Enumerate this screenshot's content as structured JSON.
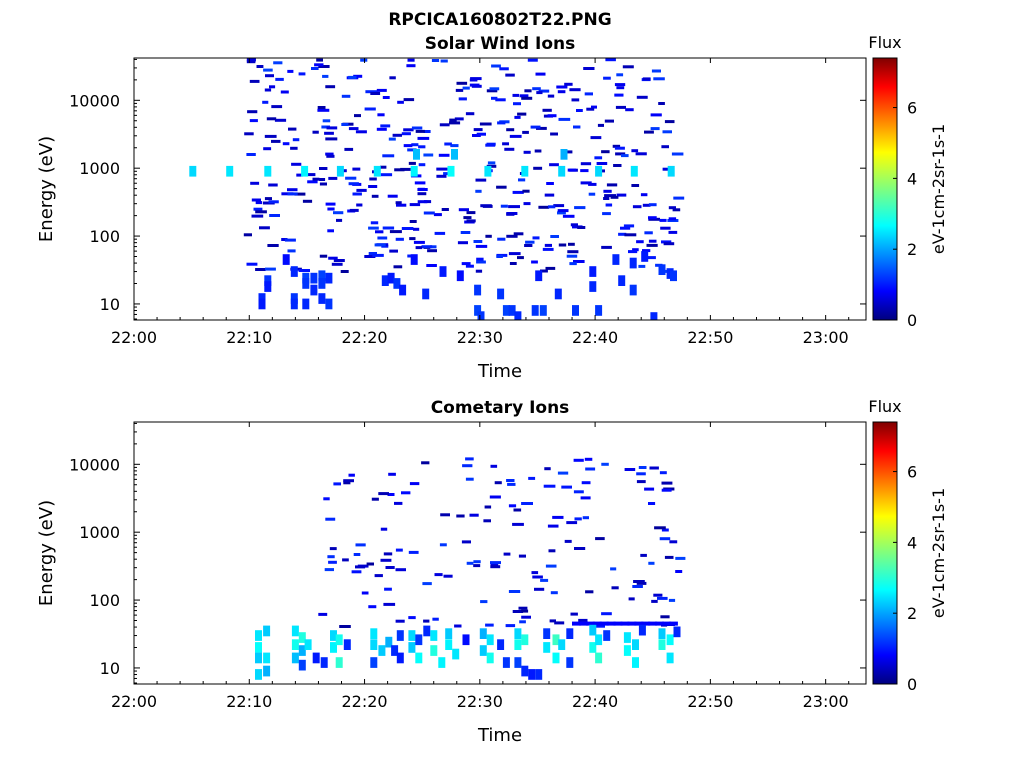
{
  "figure": {
    "title": "RPCICA160802T22.PNG"
  },
  "chart_data": [
    {
      "type": "heatmap",
      "title": "Solar Wind Ions",
      "xlabel": "Time",
      "ylabel": "Energy (eV)",
      "x_ticks": [
        "22:00",
        "22:10",
        "22:20",
        "22:30",
        "22:40",
        "22:50",
        "23:00"
      ],
      "xlim_minutes": [
        0,
        63.5
      ],
      "y_scale": "log",
      "y_ticks": [
        10,
        100,
        1000,
        10000
      ],
      "y_tick_labels": [
        "10",
        "100",
        "1000",
        "10000"
      ],
      "ylim": [
        5.8,
        42000
      ],
      "colorbar": {
        "title": "Flux",
        "label": "eV-1cm-2sr-1s-1",
        "ticks": [
          0,
          2,
          4,
          6
        ],
        "range": [
          0,
          7.4
        ],
        "colormap": "jet"
      },
      "data_window_minutes": [
        4.5,
        47
      ],
      "cells": [
        [
          4.8,
          900,
          2.5
        ],
        [
          8,
          900,
          2.6
        ],
        [
          11.3,
          900,
          2.6
        ],
        [
          14.5,
          900,
          2.7
        ],
        [
          17.6,
          900,
          2.5
        ],
        [
          20.8,
          900,
          2.6
        ],
        [
          24,
          900,
          2.7
        ],
        [
          27.2,
          900,
          2.8
        ],
        [
          30.4,
          900,
          2.6
        ],
        [
          33.6,
          900,
          2.6
        ],
        [
          36.8,
          900,
          2.5
        ],
        [
          40,
          900,
          2.5
        ],
        [
          43.1,
          900,
          2.6
        ],
        [
          46.3,
          900,
          2.5
        ],
        [
          27.5,
          1600,
          2.3
        ],
        [
          37,
          1600,
          2.2
        ],
        [
          24.2,
          1600,
          2.3
        ],
        [
          10.8,
          12,
          1.2
        ],
        [
          10.8,
          10,
          1.1
        ],
        [
          11.3,
          22,
          1.3
        ],
        [
          11.3,
          18,
          1.1
        ],
        [
          12.9,
          45,
          1.0
        ],
        [
          13.6,
          30,
          1.2
        ],
        [
          13.6,
          12,
          1.3
        ],
        [
          13.6,
          10,
          1.2
        ],
        [
          14.6,
          24,
          1.4
        ],
        [
          14.6,
          20,
          1.3
        ],
        [
          14.6,
          10,
          1.2
        ],
        [
          15.3,
          24,
          1.3
        ],
        [
          15.3,
          16,
          1.2
        ],
        [
          16.0,
          26,
          1.4
        ],
        [
          16.0,
          20,
          1.3
        ],
        [
          16.0,
          12,
          1.2
        ],
        [
          16.6,
          24,
          1.2
        ],
        [
          16.6,
          10,
          1.3
        ],
        [
          21.5,
          22,
          1.2
        ],
        [
          22.0,
          24,
          1.1
        ],
        [
          22.5,
          20,
          1.3
        ],
        [
          23.0,
          16,
          1.1
        ],
        [
          24.0,
          45,
          1.0
        ],
        [
          25.0,
          14,
          1.2
        ],
        [
          26.5,
          30,
          1.1
        ],
        [
          28.0,
          26,
          1.0
        ],
        [
          29.5,
          16,
          1.3
        ],
        [
          29.5,
          8,
          1.4
        ],
        [
          29.8,
          6.5,
          1.3
        ],
        [
          31.5,
          14,
          1.3
        ],
        [
          32.0,
          8,
          1.4
        ],
        [
          32.5,
          8,
          1.3
        ],
        [
          33.0,
          6.5,
          1.2
        ],
        [
          34.5,
          8,
          1.3
        ],
        [
          35.2,
          8,
          1.4
        ],
        [
          34.8,
          26,
          1.1
        ],
        [
          36.5,
          14,
          1.2
        ],
        [
          38.0,
          8,
          1.3
        ],
        [
          39.5,
          18,
          1.2
        ],
        [
          39.5,
          30,
          1.1
        ],
        [
          40.0,
          8,
          1.3
        ],
        [
          41.5,
          45,
          1.2
        ],
        [
          42.0,
          22,
          1.2
        ],
        [
          43.0,
          16,
          1.3
        ],
        [
          43.0,
          40,
          1.2
        ],
        [
          44.0,
          50,
          1.1
        ],
        [
          44.8,
          6.3,
          1.2
        ],
        [
          45.5,
          32,
          1.3
        ],
        [
          46.2,
          28,
          1.2
        ],
        [
          46.5,
          26,
          1.3
        ]
      ]
    },
    {
      "type": "heatmap",
      "title": "Cometary Ions",
      "xlabel": "Time",
      "ylabel": "Energy (eV)",
      "x_ticks": [
        "22:00",
        "22:10",
        "22:20",
        "22:30",
        "22:40",
        "22:50",
        "23:00"
      ],
      "xlim_minutes": [
        0,
        63.5
      ],
      "y_scale": "log",
      "y_ticks": [
        10,
        100,
        1000,
        10000
      ],
      "y_tick_labels": [
        "10",
        "100",
        "1000",
        "10000"
      ],
      "ylim": [
        5.8,
        42000
      ],
      "colorbar": {
        "title": "Flux",
        "label": "eV-1cm-2sr-1s-1",
        "ticks": [
          0,
          2,
          4,
          6
        ],
        "range": [
          0,
          7.4
        ],
        "colormap": "jet"
      },
      "data_window_minutes": [
        10,
        47
      ],
      "cells": [
        [
          10.5,
          30,
          2.6
        ],
        [
          10.5,
          20,
          2.8
        ],
        [
          10.5,
          14,
          2.4
        ],
        [
          10.5,
          8,
          2.5
        ],
        [
          11.2,
          14,
          2.6
        ],
        [
          11.2,
          9,
          2.2
        ],
        [
          11.2,
          35,
          2.4
        ],
        [
          13.7,
          35,
          2.6
        ],
        [
          13.7,
          22,
          2.9
        ],
        [
          13.7,
          14,
          2.3
        ],
        [
          14.3,
          28,
          3.0
        ],
        [
          14.3,
          18,
          2.2
        ],
        [
          14.3,
          11,
          1.4
        ],
        [
          14.8,
          22,
          2.6
        ],
        [
          15.5,
          14,
          1.1
        ],
        [
          16.2,
          12,
          1.2
        ],
        [
          17.0,
          30,
          2.5
        ],
        [
          17.0,
          20,
          2.7
        ],
        [
          17.5,
          26,
          2.9
        ],
        [
          17.5,
          12,
          3.1
        ],
        [
          18.2,
          22,
          1.2
        ],
        [
          20.5,
          32,
          2.6
        ],
        [
          20.5,
          22,
          2.5
        ],
        [
          20.5,
          12,
          1.4
        ],
        [
          21.2,
          18,
          2.4
        ],
        [
          21.8,
          24,
          2.2
        ],
        [
          22.3,
          18,
          1.2
        ],
        [
          22.8,
          30,
          1.3
        ],
        [
          22.8,
          14,
          1.1
        ],
        [
          23.8,
          30,
          2.5
        ],
        [
          23.8,
          20,
          2.4
        ],
        [
          24.4,
          26,
          1.3
        ],
        [
          24.4,
          14,
          2.8
        ],
        [
          25.1,
          35,
          1.2
        ],
        [
          25.7,
          30,
          2.6
        ],
        [
          25.7,
          18,
          3.0
        ],
        [
          26.4,
          12,
          2.7
        ],
        [
          27.0,
          32,
          2.4
        ],
        [
          27.0,
          22,
          2.7
        ],
        [
          27.6,
          16,
          2.6
        ],
        [
          28.5,
          26,
          1.0
        ],
        [
          30.0,
          32,
          2.2
        ],
        [
          30.0,
          18,
          2.4
        ],
        [
          30.6,
          26,
          2.6
        ],
        [
          30.6,
          14,
          2.9
        ],
        [
          31.5,
          22,
          1.2
        ],
        [
          32.0,
          12,
          1.3
        ],
        [
          33.0,
          32,
          2.5
        ],
        [
          33.0,
          22,
          2.9
        ],
        [
          33.0,
          12,
          1.4
        ],
        [
          33.6,
          26,
          3.0
        ],
        [
          33.6,
          9,
          1.2
        ],
        [
          34.2,
          8,
          1.1
        ],
        [
          34.8,
          8,
          1.2
        ],
        [
          35.5,
          32,
          1.3
        ],
        [
          35.5,
          20,
          2.6
        ],
        [
          36.3,
          26,
          3.2
        ],
        [
          36.3,
          14,
          2.8
        ],
        [
          36.8,
          22,
          2.5
        ],
        [
          37.5,
          32,
          1.2
        ],
        [
          37.5,
          12,
          1.3
        ],
        [
          39.5,
          36,
          2.4
        ],
        [
          39.5,
          20,
          2.9
        ],
        [
          40.0,
          14,
          3.1
        ],
        [
          40.0,
          26,
          2.6
        ],
        [
          40.7,
          30,
          1.3
        ],
        [
          42.5,
          28,
          2.6
        ],
        [
          42.5,
          18,
          2.8
        ],
        [
          43.2,
          22,
          2.5
        ],
        [
          43.2,
          12,
          2.7
        ],
        [
          43.8,
          36,
          1.2
        ],
        [
          45.5,
          32,
          2.4
        ],
        [
          45.5,
          22,
          3.0
        ],
        [
          46.2,
          14,
          2.6
        ],
        [
          46.2,
          26,
          2.8
        ],
        [
          46.8,
          34,
          1.2
        ]
      ]
    }
  ]
}
